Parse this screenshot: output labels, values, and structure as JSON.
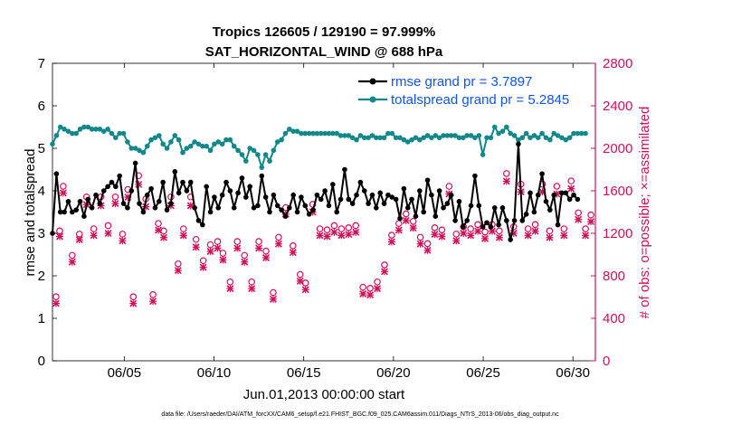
{
  "chart_data": {
    "type": "line",
    "title": "Tropics 126605 / 129190 = 97.999%",
    "subtitle": "SAT_HORIZONTAL_WIND @ 688 hPa",
    "xlabel": "Jun.01,2013 00:00:00 start",
    "ylabel_left": "rmse and totalspread",
    "ylabel_right": "# of obs: o=possible; ×=assimilated",
    "footnote": "data file: /Users/raeder/DAI/ATM_forcXX/CAM6_setup/f.e21.FHIST_BGC.f09_025.CAM6assim.011/Diags_NTrS_2013-06/obs_diag_output.nc",
    "xlim": [
      1.0,
      31.25
    ],
    "ylim_left": [
      0,
      7
    ],
    "ylim_right": [
      0,
      2800
    ],
    "xticks": [
      5,
      10,
      15,
      20,
      25,
      30
    ],
    "xtick_labels": [
      "06/05",
      "06/10",
      "06/15",
      "06/20",
      "06/25",
      "06/30"
    ],
    "yticks_left": [
      0,
      1,
      2,
      3,
      4,
      5,
      6,
      7
    ],
    "yticks_right": [
      0,
      400,
      800,
      1200,
      1600,
      2000,
      2400,
      2800
    ],
    "colors": {
      "rmse": "#000000",
      "totalspread": "#13888a",
      "obs": "#d0105a",
      "legend_text": "#1155dd"
    },
    "legend": [
      {
        "label": "rmse grand pr = 3.7897",
        "series": "rmse"
      },
      {
        "label": "totalspread grand pr = 5.2845",
        "series": "totalspread"
      }
    ],
    "series": [
      {
        "name": "rmse",
        "axis": "left",
        "values": [
          3.0,
          4.4,
          3.5,
          3.5,
          3.75,
          3.5,
          3.55,
          3.75,
          3.4,
          3.8,
          3.6,
          3.9,
          3.7,
          4.0,
          4.1,
          4.2,
          4.1,
          4.35,
          3.7,
          3.6,
          4.0,
          4.65,
          3.7,
          3.5,
          3.9,
          4.05,
          3.6,
          3.75,
          4.2,
          3.55,
          3.7,
          4.45,
          3.95,
          4.2,
          4.0,
          4.2,
          3.6,
          3.3,
          3.2,
          4.1,
          3.5,
          3.85,
          3.6,
          3.9,
          4.2,
          4.0,
          3.6,
          3.95,
          4.3,
          3.85,
          4.1,
          3.6,
          3.65,
          4.35,
          3.85,
          3.5,
          3.9,
          3.65,
          3.55,
          3.4,
          3.6,
          3.9,
          3.5,
          3.85,
          3.65,
          3.45,
          3.55,
          3.9,
          3.8,
          4.0,
          3.65,
          4.15,
          3.5,
          3.8,
          4.5,
          3.8,
          3.7,
          3.9,
          4.2,
          4.0,
          3.7,
          3.9,
          3.6,
          3.95,
          3.7,
          3.9,
          3.85,
          3.8,
          3.35,
          4.05,
          3.6,
          3.8,
          3.4,
          4.0,
          3.5,
          4.25,
          3.9,
          3.4,
          4.0,
          3.6,
          3.7,
          3.9,
          3.3,
          3.75,
          3.15,
          3.3,
          3.65,
          4.35,
          3.65,
          3.15,
          3.25,
          3.15,
          3.6,
          3.2,
          3.6,
          3.3,
          2.85,
          3.3,
          5.1,
          3.3,
          3.45,
          3.95,
          3.5,
          3.9,
          4.4,
          3.75,
          3.55,
          3.9,
          3.2,
          3.95,
          3.95,
          3.8,
          3.9,
          3.8
        ],
        "x_start": 1.0,
        "x_step": 0.22
      },
      {
        "name": "totalspread",
        "axis": "left",
        "values": [
          5.1,
          5.3,
          5.5,
          5.45,
          5.4,
          5.35,
          5.35,
          5.45,
          5.5,
          5.5,
          5.45,
          5.45,
          5.45,
          5.4,
          5.45,
          5.35,
          5.25,
          5.35,
          5.35,
          5.15,
          5.0,
          5.0,
          4.95,
          4.9,
          5.05,
          5.2,
          5.25,
          5.3,
          5.1,
          5.0,
          5.15,
          5.3,
          5.2,
          4.9,
          5.0,
          5.05,
          5.15,
          5.1,
          5.05,
          5.05,
          4.95,
          5.1,
          5.15,
          5.1,
          5.2,
          5.2,
          5.05,
          4.95,
          4.85,
          4.7,
          5.0,
          4.95,
          4.85,
          4.55,
          4.85,
          4.7,
          4.95,
          5.15,
          5.2,
          5.35,
          5.45,
          5.4,
          5.4,
          5.35,
          5.35,
          5.35,
          5.35,
          5.35,
          5.35,
          5.35,
          5.35,
          5.35,
          5.35,
          5.3,
          5.3,
          5.3,
          5.25,
          5.2,
          5.3,
          5.25,
          5.25,
          5.3,
          5.25,
          5.25,
          5.25,
          5.35,
          5.35,
          5.25,
          5.25,
          5.2,
          5.15,
          5.2,
          5.25,
          5.2,
          5.25,
          5.3,
          5.25,
          5.3,
          5.25,
          5.3,
          5.3,
          5.3,
          5.3,
          5.25,
          5.25,
          5.3,
          5.3,
          5.25,
          5.3,
          4.85,
          5.25,
          5.25,
          5.5,
          5.35,
          5.4,
          5.5,
          5.35,
          5.3,
          5.2,
          5.25,
          5.35,
          5.25,
          5.3,
          5.25,
          5.35,
          5.25,
          5.2,
          5.35,
          5.3,
          5.25,
          5.2,
          5.25,
          5.35,
          5.35,
          5.35,
          5.35
        ],
        "x_start": 1.0,
        "x_step": 0.22
      },
      {
        "name": "obs_possible",
        "axis": "right",
        "marker": "o",
        "x": [
          1.2,
          1.4,
          1.6,
          2.1,
          2.5,
          2.9,
          3.3,
          3.7,
          4.1,
          4.5,
          4.9,
          5.2,
          5.5,
          5.8,
          6.2,
          6.6,
          6.9,
          7.2,
          7.6,
          8.0,
          8.3,
          8.7,
          9.0,
          9.4,
          9.8,
          10.2,
          10.5,
          10.9,
          11.3,
          11.7,
          12.1,
          12.5,
          12.9,
          13.3,
          13.6,
          14.0,
          14.4,
          14.8,
          15.1,
          15.5,
          15.9,
          16.3,
          16.7,
          17.1,
          17.5,
          17.9,
          18.3,
          18.7,
          19.1,
          19.5,
          19.9,
          20.3,
          20.7,
          21.1,
          21.5,
          21.9,
          22.3,
          22.7,
          23.1,
          23.5,
          23.9,
          24.3,
          24.7,
          25.1,
          25.5,
          25.9,
          26.3,
          26.7,
          27.1,
          27.5,
          27.9,
          28.3,
          28.7,
          29.1,
          29.5,
          29.9,
          30.3,
          30.7,
          31.0
        ],
        "values": [
          560,
          1180,
          1600,
          950,
          1150,
          1500,
          1200,
          1500,
          1230,
          1500,
          1150,
          1570,
          560,
          1700,
          1480,
          580,
          1250,
          1180,
          1500,
          870,
          1200,
          1500,
          1100,
          900,
          1050,
          1080,
          970,
          700,
          1080,
          950,
          700,
          1080,
          990,
          600,
          1120,
          1400,
          1040,
          770,
          690,
          1430,
          1200,
          1190,
          1230,
          1200,
          1210,
          1230,
          650,
          640,
          700,
          860,
          1140,
          1250,
          1340,
          1270,
          1120,
          1060,
          1210,
          1190,
          1600,
          1150,
          1220,
          1200,
          1240,
          1170,
          1240,
          1180,
          1720,
          1220,
          1620,
          1200,
          1240,
          1620,
          1180,
          1600,
          1200,
          1650,
          1350,
          1200,
          1330
        ]
      },
      {
        "name": "obs_assimilated",
        "axis": "right",
        "marker": "x",
        "x": [
          1.2,
          1.4,
          1.6,
          2.1,
          2.5,
          2.9,
          3.3,
          3.7,
          4.1,
          4.5,
          4.9,
          5.2,
          5.5,
          5.8,
          6.2,
          6.6,
          6.9,
          7.2,
          7.6,
          8.0,
          8.3,
          8.7,
          9.0,
          9.4,
          9.8,
          10.2,
          10.5,
          10.9,
          11.3,
          11.7,
          12.1,
          12.5,
          12.9,
          13.3,
          13.6,
          14.0,
          14.4,
          14.8,
          15.1,
          15.5,
          15.9,
          16.3,
          16.7,
          17.1,
          17.5,
          17.9,
          18.3,
          18.7,
          19.1,
          19.5,
          19.9,
          20.3,
          20.7,
          21.1,
          21.5,
          21.9,
          22.3,
          22.7,
          23.1,
          23.5,
          23.9,
          24.3,
          24.7,
          25.1,
          25.5,
          25.9,
          26.3,
          26.7,
          27.1,
          27.5,
          27.9,
          28.3,
          28.7,
          29.1,
          29.5,
          29.9,
          30.3,
          30.7,
          31.0
        ],
        "values": [
          540,
          1170,
          1580,
          930,
          1140,
          1470,
          1180,
          1460,
          1200,
          1480,
          1130,
          1540,
          540,
          1660,
          1450,
          560,
          1230,
          1160,
          1460,
          850,
          1180,
          1460,
          1070,
          880,
          1030,
          1060,
          950,
          680,
          1060,
          930,
          680,
          1060,
          970,
          580,
          1100,
          1380,
          1020,
          750,
          670,
          1400,
          1180,
          1170,
          1210,
          1180,
          1190,
          1210,
          630,
          620,
          680,
          840,
          1120,
          1230,
          1320,
          1250,
          1100,
          1040,
          1190,
          1170,
          1570,
          1130,
          1200,
          1180,
          1220,
          1150,
          1220,
          1160,
          1690,
          1200,
          1590,
          1180,
          1220,
          1590,
          1160,
          1570,
          1180,
          1620,
          1330,
          1180,
          1310
        ]
      }
    ]
  }
}
